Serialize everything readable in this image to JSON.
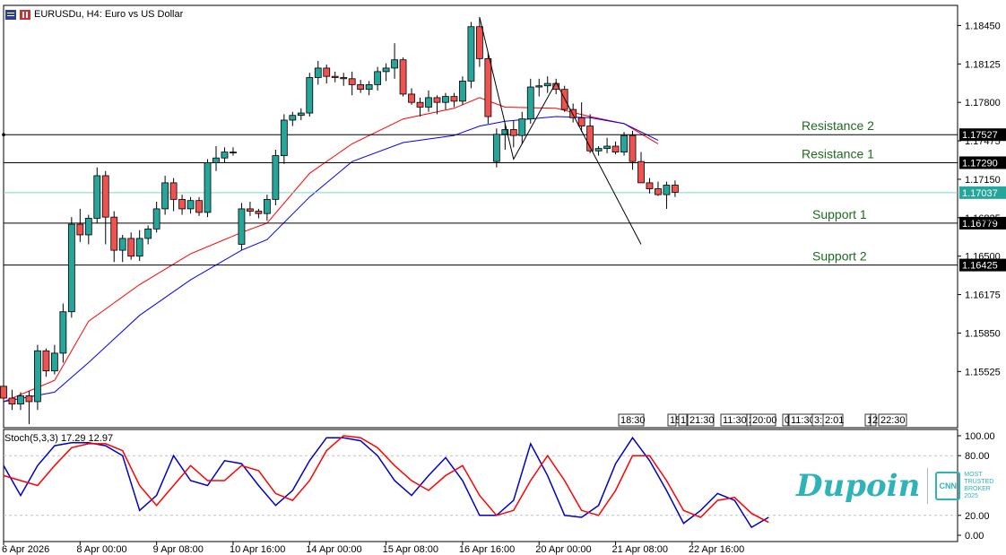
{
  "header": {
    "title": "EURUSDu, H4:  Euro vs US Dollar"
  },
  "watermark": {
    "brand": "Dupoin",
    "badge": "CNN",
    "award_line1": "MOST",
    "award_line2": "TRUSTED",
    "award_line3": "BROKER",
    "award_line4": "2025"
  },
  "colors": {
    "bull": "#26a69a",
    "bear": "#ef5350",
    "ma_fast": "#ff0000",
    "ma_slow": "#0000ff",
    "stoch_main": "#0000c8",
    "stoch_signal": "#ff0000",
    "levels_text": "#1e6b1e",
    "current_price": "#7fd8c8"
  },
  "chart_data": {
    "type": "candlestick",
    "symbol": "EURUSDu",
    "timeframe": "H4",
    "ylim": [
      1.1505,
      1.1862
    ],
    "y_ticks": [
      "1.18450",
      "1.18125",
      "1.17800",
      "1.17475",
      "1.17150",
      "1.16825",
      "1.16500",
      "1.16175",
      "1.15850",
      "1.15525"
    ],
    "x_labels": [
      "6 Apr 2026",
      "8 Apr 00:00",
      "9 Apr 08:00",
      "10 Apr 16:00",
      "14 Apr 00:00",
      "15 Apr 08:00",
      "16 Apr 16:00",
      "20 Apr 00:00",
      "21 Apr 08:00",
      "22 Apr 16:00"
    ],
    "x_label_index": [
      0,
      9,
      18,
      27,
      36,
      45,
      54,
      63,
      72,
      81
    ],
    "candles": [
      [
        1.154,
        1.1545,
        1.1525,
        1.153
      ],
      [
        1.153,
        1.1537,
        1.152,
        1.1525
      ],
      [
        1.1525,
        1.1535,
        1.152,
        1.1532
      ],
      [
        1.1532,
        1.1536,
        1.1508,
        1.1527
      ],
      [
        1.1527,
        1.1575,
        1.152,
        1.157
      ],
      [
        1.157,
        1.1572,
        1.1548,
        1.1553
      ],
      [
        1.1553,
        1.1575,
        1.155,
        1.1568
      ],
      [
        1.1568,
        1.161,
        1.156,
        1.1603
      ],
      [
        1.1603,
        1.1683,
        1.1598,
        1.1677
      ],
      [
        1.1677,
        1.169,
        1.1662,
        1.1668
      ],
      [
        1.1668,
        1.1685,
        1.166,
        1.1682
      ],
      [
        1.1682,
        1.1725,
        1.1678,
        1.1718
      ],
      [
        1.1718,
        1.1722,
        1.166,
        1.1683
      ],
      [
        1.1683,
        1.1688,
        1.1645,
        1.1655
      ],
      [
        1.1655,
        1.1668,
        1.1645,
        1.1665
      ],
      [
        1.1665,
        1.167,
        1.1647,
        1.165
      ],
      [
        1.165,
        1.1672,
        1.1646,
        1.1665
      ],
      [
        1.1665,
        1.1676,
        1.166,
        1.1673
      ],
      [
        1.1673,
        1.1696,
        1.167,
        1.169
      ],
      [
        1.169,
        1.1718,
        1.1685,
        1.1712
      ],
      [
        1.1712,
        1.1716,
        1.1688,
        1.1698
      ],
      [
        1.1698,
        1.1702,
        1.1685,
        1.169
      ],
      [
        1.169,
        1.17,
        1.1686,
        1.1697
      ],
      [
        1.1697,
        1.17,
        1.1684,
        1.1687
      ],
      [
        1.1687,
        1.1732,
        1.1683,
        1.1729
      ],
      [
        1.1729,
        1.1743,
        1.1722,
        1.1733
      ],
      [
        1.1733,
        1.1742,
        1.1729,
        1.1738
      ],
      [
        1.1738,
        1.1742,
        1.1735,
        1.1738
      ],
      [
        1.166,
        1.1695,
        1.1655,
        1.169
      ],
      [
        1.169,
        1.1696,
        1.1684,
        1.1688
      ],
      [
        1.1688,
        1.169,
        1.1682,
        1.1686
      ],
      [
        1.1686,
        1.1702,
        1.168,
        1.1698
      ],
      [
        1.1698,
        1.174,
        1.1693,
        1.1735
      ],
      [
        1.1735,
        1.177,
        1.1728,
        1.1765
      ],
      [
        1.1765,
        1.1772,
        1.176,
        1.1769
      ],
      [
        1.1769,
        1.1775,
        1.1765,
        1.1771
      ],
      [
        1.1771,
        1.1805,
        1.1768,
        1.1801
      ],
      [
        1.1801,
        1.1815,
        1.1795,
        1.1809
      ],
      [
        1.1809,
        1.1812,
        1.1796,
        1.1802
      ],
      [
        1.1802,
        1.1806,
        1.1797,
        1.1801
      ],
      [
        1.1801,
        1.1805,
        1.1794,
        1.18
      ],
      [
        1.18,
        1.1806,
        1.1786,
        1.1795
      ],
      [
        1.1795,
        1.1799,
        1.1788,
        1.1791
      ],
      [
        1.1791,
        1.1798,
        1.1786,
        1.1795
      ],
      [
        1.1795,
        1.181,
        1.179,
        1.1806
      ],
      [
        1.1806,
        1.1813,
        1.1798,
        1.1809
      ],
      [
        1.1809,
        1.183,
        1.18,
        1.1816
      ],
      [
        1.1816,
        1.1818,
        1.1785,
        1.1787
      ],
      [
        1.1787,
        1.1792,
        1.1778,
        1.178
      ],
      [
        1.178,
        1.1784,
        1.1768,
        1.1776
      ],
      [
        1.1776,
        1.179,
        1.1772,
        1.1784
      ],
      [
        1.1784,
        1.1786,
        1.177,
        1.178
      ],
      [
        1.178,
        1.1788,
        1.1774,
        1.1785
      ],
      [
        1.1785,
        1.1788,
        1.1776,
        1.1781
      ],
      [
        1.1781,
        1.1802,
        1.1778,
        1.1798
      ],
      [
        1.1798,
        1.1848,
        1.1792,
        1.1844
      ],
      [
        1.1844,
        1.1852,
        1.181,
        1.1817
      ],
      [
        1.1817,
        1.1822,
        1.1762,
        1.1768
      ],
      [
        1.173,
        1.1758,
        1.1725,
        1.1753
      ],
      [
        1.1753,
        1.1762,
        1.174,
        1.1757
      ],
      [
        1.1757,
        1.1765,
        1.1742,
        1.1752
      ],
      [
        1.1752,
        1.1772,
        1.1745,
        1.1766
      ],
      [
        1.1766,
        1.18,
        1.1762,
        1.1793
      ],
      [
        1.1793,
        1.18,
        1.1785,
        1.1794
      ],
      [
        1.1794,
        1.1802,
        1.1788,
        1.1796
      ],
      [
        1.1796,
        1.18,
        1.1787,
        1.1791
      ],
      [
        1.1791,
        1.1794,
        1.1772,
        1.1774
      ],
      [
        1.1774,
        1.1779,
        1.1763,
        1.1767
      ],
      [
        1.1767,
        1.178,
        1.1755,
        1.176
      ],
      [
        1.176,
        1.177,
        1.1737,
        1.1739
      ],
      [
        1.1739,
        1.1743,
        1.1735,
        1.1741
      ],
      [
        1.1741,
        1.175,
        1.1737,
        1.1743
      ],
      [
        1.1743,
        1.1747,
        1.1736,
        1.1738
      ],
      [
        1.1738,
        1.1755,
        1.1735,
        1.1752
      ],
      [
        1.1752,
        1.1756,
        1.1723,
        1.173
      ],
      [
        1.173,
        1.1738,
        1.1712,
        1.1712
      ],
      [
        1.1712,
        1.1716,
        1.1703,
        1.1707
      ],
      [
        1.1707,
        1.1713,
        1.1701,
        1.1702
      ],
      [
        1.1702,
        1.1713,
        1.169,
        1.171
      ],
      [
        1.171,
        1.1714,
        1.17,
        1.1704
      ]
    ],
    "ma_fast": {
      "color": "#ff0000",
      "points": [
        [
          0,
          1.1527
        ],
        [
          6,
          1.1545
        ],
        [
          10,
          1.1595
        ],
        [
          16,
          1.1626
        ],
        [
          22,
          1.1652
        ],
        [
          28,
          1.167
        ],
        [
          31,
          1.1678
        ],
        [
          36,
          1.172
        ],
        [
          41,
          1.1745
        ],
        [
          47,
          1.1766
        ],
        [
          53,
          1.1775
        ],
        [
          56,
          1.1784
        ],
        [
          59,
          1.1776
        ],
        [
          65,
          1.1775
        ],
        [
          69,
          1.1768
        ],
        [
          73,
          1.1762
        ],
        [
          77,
          1.1745
        ]
      ]
    },
    "ma_slow": {
      "color": "#0000ff",
      "points": [
        [
          0,
          1.1527
        ],
        [
          6,
          1.1535
        ],
        [
          10,
          1.156
        ],
        [
          16,
          1.16
        ],
        [
          22,
          1.163
        ],
        [
          28,
          1.1655
        ],
        [
          31,
          1.1664
        ],
        [
          36,
          1.17
        ],
        [
          41,
          1.173
        ],
        [
          47,
          1.1746
        ],
        [
          53,
          1.1752
        ],
        [
          56,
          1.176
        ],
        [
          59,
          1.1764
        ],
        [
          65,
          1.1768
        ],
        [
          69,
          1.1767
        ],
        [
          73,
          1.1762
        ],
        [
          77,
          1.1748
        ]
      ]
    },
    "levels": [
      {
        "name": "Resistance 2",
        "price": 1.17527,
        "label": "1.17527"
      },
      {
        "name": "Resistance 1",
        "price": 1.1729,
        "label": "1.17290"
      },
      {
        "name": "Support 1",
        "price": 1.16779,
        "label": "1.16779"
      },
      {
        "name": "Support 2",
        "price": 1.16425,
        "label": "1.16425"
      }
    ],
    "current_price": {
      "price": 1.17037,
      "label": "1.17037"
    },
    "zigzag": [
      [
        56,
        1.1852
      ],
      [
        60,
        1.1732
      ],
      [
        65,
        1.1797
      ],
      [
        75,
        1.166
      ]
    ],
    "time_markers": [
      "18:30",
      "15",
      "17",
      "21:30",
      "11:30",
      "2",
      "20:00",
      "0",
      "11:30",
      "3:30",
      "2:01",
      "1",
      "2",
      "22:30"
    ],
    "stochastic": {
      "label": "Stoch(5,3,3) 17.29 12.97",
      "ylim": [
        0,
        100
      ],
      "ticks": [
        "100.00",
        "80.00",
        "20.00",
        "0.00"
      ],
      "main": [
        [
          0,
          70
        ],
        [
          2,
          40
        ],
        [
          4,
          70
        ],
        [
          6,
          90
        ],
        [
          8,
          93
        ],
        [
          10,
          93
        ],
        [
          12,
          90
        ],
        [
          14,
          80
        ],
        [
          16,
          25
        ],
        [
          18,
          40
        ],
        [
          20,
          80
        ],
        [
          22,
          55
        ],
        [
          24,
          50
        ],
        [
          26,
          75
        ],
        [
          28,
          72
        ],
        [
          30,
          50
        ],
        [
          32,
          30
        ],
        [
          34,
          45
        ],
        [
          36,
          75
        ],
        [
          38,
          98
        ],
        [
          40,
          98
        ],
        [
          42,
          95
        ],
        [
          44,
          80
        ],
        [
          46,
          55
        ],
        [
          48,
          40
        ],
        [
          50,
          60
        ],
        [
          52,
          78
        ],
        [
          54,
          55
        ],
        [
          56,
          20
        ],
        [
          58,
          20
        ],
        [
          60,
          35
        ],
        [
          62,
          92
        ],
        [
          64,
          60
        ],
        [
          66,
          20
        ],
        [
          68,
          18
        ],
        [
          70,
          30
        ],
        [
          72,
          72
        ],
        [
          74,
          98
        ],
        [
          76,
          75
        ],
        [
          78,
          45
        ],
        [
          80,
          12
        ],
        [
          82,
          25
        ],
        [
          84,
          42
        ],
        [
          86,
          35
        ],
        [
          88,
          8
        ],
        [
          90,
          18
        ]
      ],
      "signal": [
        [
          0,
          60
        ],
        [
          2,
          55
        ],
        [
          4,
          50
        ],
        [
          6,
          70
        ],
        [
          8,
          88
        ],
        [
          10,
          92
        ],
        [
          12,
          92
        ],
        [
          14,
          85
        ],
        [
          16,
          50
        ],
        [
          18,
          30
        ],
        [
          20,
          50
        ],
        [
          22,
          70
        ],
        [
          24,
          55
        ],
        [
          26,
          55
        ],
        [
          28,
          70
        ],
        [
          30,
          65
        ],
        [
          32,
          42
        ],
        [
          34,
          35
        ],
        [
          36,
          55
        ],
        [
          38,
          85
        ],
        [
          40,
          100
        ],
        [
          42,
          98
        ],
        [
          44,
          88
        ],
        [
          46,
          70
        ],
        [
          48,
          55
        ],
        [
          50,
          45
        ],
        [
          52,
          60
        ],
        [
          54,
          70
        ],
        [
          56,
          40
        ],
        [
          58,
          20
        ],
        [
          60,
          25
        ],
        [
          62,
          55
        ],
        [
          64,
          80
        ],
        [
          66,
          55
        ],
        [
          68,
          25
        ],
        [
          70,
          20
        ],
        [
          72,
          45
        ],
        [
          74,
          80
        ],
        [
          76,
          80
        ],
        [
          78,
          55
        ],
        [
          80,
          25
        ],
        [
          82,
          18
        ],
        [
          84,
          35
        ],
        [
          86,
          38
        ],
        [
          88,
          22
        ],
        [
          90,
          13
        ]
      ]
    }
  }
}
